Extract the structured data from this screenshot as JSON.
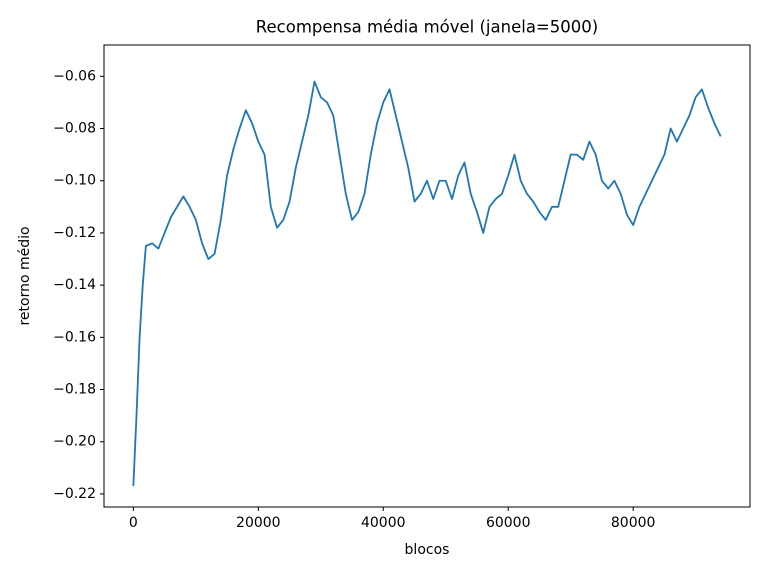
{
  "chart_data": {
    "type": "line",
    "title": "Recompensa média móvel (janela=5000)",
    "x_label": "blocos",
    "y_label": "retorno médio",
    "x": [
      0,
      500,
      1000,
      1500,
      2000,
      3000,
      4000,
      5000,
      6000,
      7000,
      8000,
      9000,
      10000,
      11000,
      12000,
      13000,
      14000,
      15000,
      16000,
      17000,
      18000,
      19000,
      20000,
      21000,
      22000,
      23000,
      24000,
      25000,
      26000,
      27000,
      28000,
      29000,
      30000,
      31000,
      32000,
      33000,
      34000,
      35000,
      36000,
      37000,
      38000,
      39000,
      40000,
      41000,
      42000,
      43000,
      44000,
      45000,
      46000,
      47000,
      48000,
      49000,
      50000,
      51000,
      52000,
      53000,
      54000,
      55000,
      56000,
      57000,
      58000,
      59000,
      60000,
      61000,
      62000,
      63000,
      64000,
      65000,
      66000,
      67000,
      68000,
      69000,
      70000,
      71000,
      72000,
      73000,
      74000,
      75000,
      76000,
      77000,
      78000,
      79000,
      80000,
      81000,
      82000,
      83000,
      84000,
      85000,
      86000,
      87000,
      88000,
      89000,
      90000,
      91000,
      92000,
      93000,
      94000
    ],
    "series": [
      {
        "name": "retorno",
        "color": "#1f77b4",
        "values": [
          -0.217,
          -0.19,
          -0.16,
          -0.14,
          -0.125,
          -0.124,
          -0.126,
          -0.12,
          -0.114,
          -0.11,
          -0.106,
          -0.11,
          -0.115,
          -0.124,
          -0.13,
          -0.128,
          -0.115,
          -0.098,
          -0.088,
          -0.08,
          -0.073,
          -0.078,
          -0.085,
          -0.09,
          -0.11,
          -0.118,
          -0.115,
          -0.108,
          -0.095,
          -0.085,
          -0.075,
          -0.062,
          -0.068,
          -0.07,
          -0.075,
          -0.09,
          -0.105,
          -0.115,
          -0.112,
          -0.105,
          -0.09,
          -0.078,
          -0.07,
          -0.065,
          -0.075,
          -0.085,
          -0.095,
          -0.108,
          -0.105,
          -0.1,
          -0.107,
          -0.1,
          -0.1,
          -0.107,
          -0.098,
          -0.093,
          -0.105,
          -0.112,
          -0.12,
          -0.11,
          -0.107,
          -0.105,
          -0.098,
          -0.09,
          -0.1,
          -0.105,
          -0.108,
          -0.112,
          -0.115,
          -0.11,
          -0.11,
          -0.1,
          -0.09,
          -0.09,
          -0.092,
          -0.085,
          -0.09,
          -0.1,
          -0.103,
          -0.1,
          -0.105,
          -0.113,
          -0.117,
          -0.11,
          -0.105,
          -0.1,
          -0.095,
          -0.09,
          -0.08,
          -0.085,
          -0.08,
          -0.075,
          -0.068,
          -0.065,
          -0.072,
          -0.078,
          -0.083
        ]
      }
    ],
    "xlim": [
      -4700,
      98700
    ],
    "ylim": [
      -0.225,
      -0.048
    ],
    "xticks": [
      0,
      20000,
      40000,
      60000,
      80000
    ],
    "yticks": [
      {
        "value": -0.22,
        "label": "−0.22"
      },
      {
        "value": -0.2,
        "label": "−0.20"
      },
      {
        "value": -0.18,
        "label": "−0.18"
      },
      {
        "value": -0.16,
        "label": "−0.16"
      },
      {
        "value": -0.14,
        "label": "−0.14"
      },
      {
        "value": -0.12,
        "label": "−0.12"
      },
      {
        "value": -0.1,
        "label": "−0.10"
      },
      {
        "value": -0.08,
        "label": "−0.08"
      },
      {
        "value": -0.06,
        "label": "−0.06"
      }
    ],
    "grid": false
  }
}
